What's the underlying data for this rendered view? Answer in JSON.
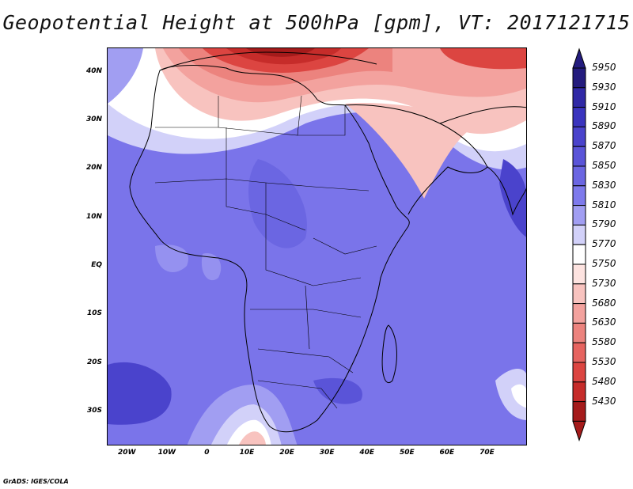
{
  "title": "Geopotential Height at 500hPa [gpm], VT: 2017121715",
  "credit": "GrADS: IGES/COLA",
  "map": {
    "lon_range": [
      -25,
      80
    ],
    "lat_range": [
      -37,
      45
    ],
    "lat_ticks": [
      {
        "lat": 40,
        "label": "40N"
      },
      {
        "lat": 30,
        "label": "30N"
      },
      {
        "lat": 20,
        "label": "20N"
      },
      {
        "lat": 10,
        "label": "10N"
      },
      {
        "lat": 0,
        "label": "EQ"
      },
      {
        "lat": -10,
        "label": "10S"
      },
      {
        "lat": -20,
        "label": "20S"
      },
      {
        "lat": -30,
        "label": "30S"
      }
    ],
    "lon_ticks": [
      {
        "lon": -20,
        "label": "20W"
      },
      {
        "lon": -10,
        "label": "10W"
      },
      {
        "lon": 0,
        "label": "0"
      },
      {
        "lon": 10,
        "label": "10E"
      },
      {
        "lon": 20,
        "label": "20E"
      },
      {
        "lon": 30,
        "label": "30E"
      },
      {
        "lon": 40,
        "label": "40E"
      },
      {
        "lon": 50,
        "label": "50E"
      },
      {
        "lon": 60,
        "label": "60E"
      },
      {
        "lon": 70,
        "label": "70E"
      }
    ]
  },
  "colorbar": {
    "levels": [
      {
        "label": "5950",
        "color": "#241c7e"
      },
      {
        "label": "5930",
        "color": "#3029a6"
      },
      {
        "label": "5910",
        "color": "#3a34be"
      },
      {
        "label": "5890",
        "color": "#4a43cc"
      },
      {
        "label": "5870",
        "color": "#5a54d8"
      },
      {
        "label": "5850",
        "color": "#6b66e2"
      },
      {
        "label": "5830",
        "color": "#7e7aec"
      },
      {
        "label": "5810",
        "color": "#a19ef2"
      },
      {
        "label": "5790",
        "color": "#d2d1f9"
      },
      {
        "label": "5770",
        "color": "#ffffff"
      },
      {
        "label": "5750",
        "color": "#fde3e0"
      },
      {
        "label": "5730",
        "color": "#f8c3bf"
      },
      {
        "label": "5680",
        "color": "#f3a29e"
      },
      {
        "label": "5630",
        "color": "#ec837e"
      },
      {
        "label": "5580",
        "color": "#e66460"
      },
      {
        "label": "5530",
        "color": "#dc4541"
      },
      {
        "label": "5480",
        "color": "#c62c2a"
      },
      {
        "label": "5430",
        "color": "#a51b1b"
      }
    ],
    "top_arrow_color": "#241c7e",
    "bottom_arrow_color": "#a51b1b"
  }
}
